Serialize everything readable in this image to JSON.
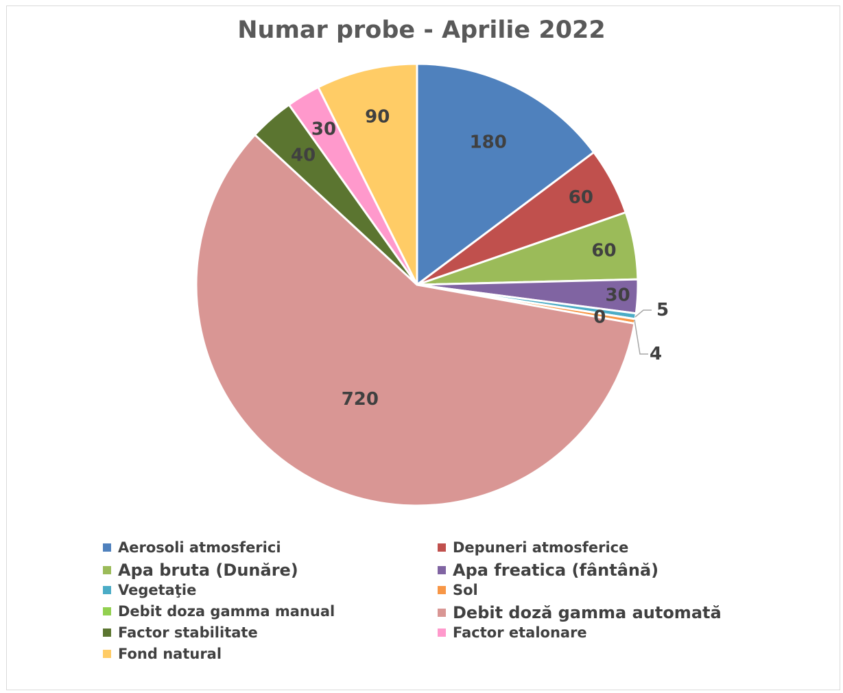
{
  "chart_data": {
    "type": "pie",
    "title": "Numar probe - Aprilie 2022",
    "categories": [
      "Aerosoli atmosferici",
      "Depuneri atmosferice",
      "Apa bruta (Dunăre)",
      "Apa freatica (fântână)",
      "Vegetaţie",
      "Sol",
      "Debit  doza gamma manual",
      "Debit doză gamma automată",
      "Factor stabilitate",
      "Factor etalonare",
      "Fond natural"
    ],
    "values": [
      180,
      60,
      60,
      30,
      5,
      4,
      0,
      720,
      40,
      30,
      90
    ],
    "labels": [
      "180",
      "60",
      "60",
      "30",
      "5",
      "4",
      "0",
      "720",
      "40",
      "30",
      "90"
    ],
    "colors": [
      "#4f81bd",
      "#c0504d",
      "#9bbb59",
      "#8064a2",
      "#4bacc6",
      "#f79646",
      "#92d050",
      "#d99694",
      "#5b7530",
      "#ff99cc",
      "#ffcc66"
    ],
    "legend_position": "bottom"
  }
}
